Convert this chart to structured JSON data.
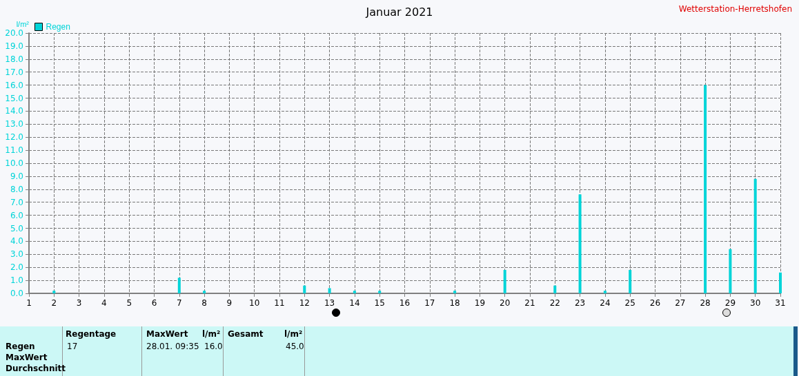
{
  "chart_data": {
    "type": "bar",
    "title": "Januar 2021",
    "subtitle": "Wetterstation-Herretshofen",
    "ylabel": "l/m²",
    "x": [
      2,
      7,
      8,
      12,
      13,
      14,
      15,
      18,
      20,
      22,
      23,
      24,
      25,
      28,
      29,
      30,
      31
    ],
    "series": [
      {
        "name": "Regen",
        "color": "#00d4d8",
        "values": [
          0.2,
          1.2,
          0.2,
          0.6,
          0.4,
          0.2,
          0.2,
          0.2,
          1.8,
          0.6,
          7.6,
          0.2,
          1.8,
          16.0,
          3.4,
          8.8,
          1.6
        ]
      }
    ],
    "xlim": [
      1,
      31
    ],
    "xticks": [
      1,
      2,
      3,
      4,
      5,
      6,
      7,
      8,
      9,
      10,
      11,
      12,
      13,
      14,
      15,
      16,
      17,
      18,
      19,
      20,
      21,
      22,
      23,
      24,
      25,
      26,
      27,
      28,
      29,
      30,
      31
    ],
    "ylim": [
      0,
      20
    ],
    "yticks": [
      {
        "value": 0,
        "label": "0.0"
      },
      {
        "value": 1,
        "label": "1.0"
      },
      {
        "value": 2,
        "label": "2.0"
      },
      {
        "value": 3,
        "label": "3.0"
      },
      {
        "value": 4,
        "label": "4.0"
      },
      {
        "value": 5,
        "label": "5.0"
      },
      {
        "value": 6,
        "label": "6.0"
      },
      {
        "value": 7,
        "label": "7.0"
      },
      {
        "value": 8,
        "label": "8.0"
      },
      {
        "value": 9,
        "label": "9.0"
      },
      {
        "value": 10,
        "label": "10.0"
      },
      {
        "value": 11,
        "label": "11.0"
      },
      {
        "value": 12,
        "label": "12.0"
      },
      {
        "value": 13,
        "label": "13.0"
      },
      {
        "value": 14,
        "label": "14.0"
      },
      {
        "value": 15,
        "label": "15.0"
      },
      {
        "value": 16,
        "label": "16.0"
      },
      {
        "value": 17,
        "label": "17.0"
      },
      {
        "value": 18,
        "label": "18.0"
      },
      {
        "value": 19,
        "label": "19.0"
      },
      {
        "value": 20,
        "label": "20.0"
      }
    ],
    "grid": true,
    "legend": "top left",
    "annotations": [
      "Regentage",
      "MaxWert",
      "l/m²",
      "Gesamt",
      "l/m²",
      "Regen",
      "17",
      "28.01.  09:35",
      "16.0",
      "45.0",
      "MaxWert",
      "Durchschnitt"
    ]
  }
}
